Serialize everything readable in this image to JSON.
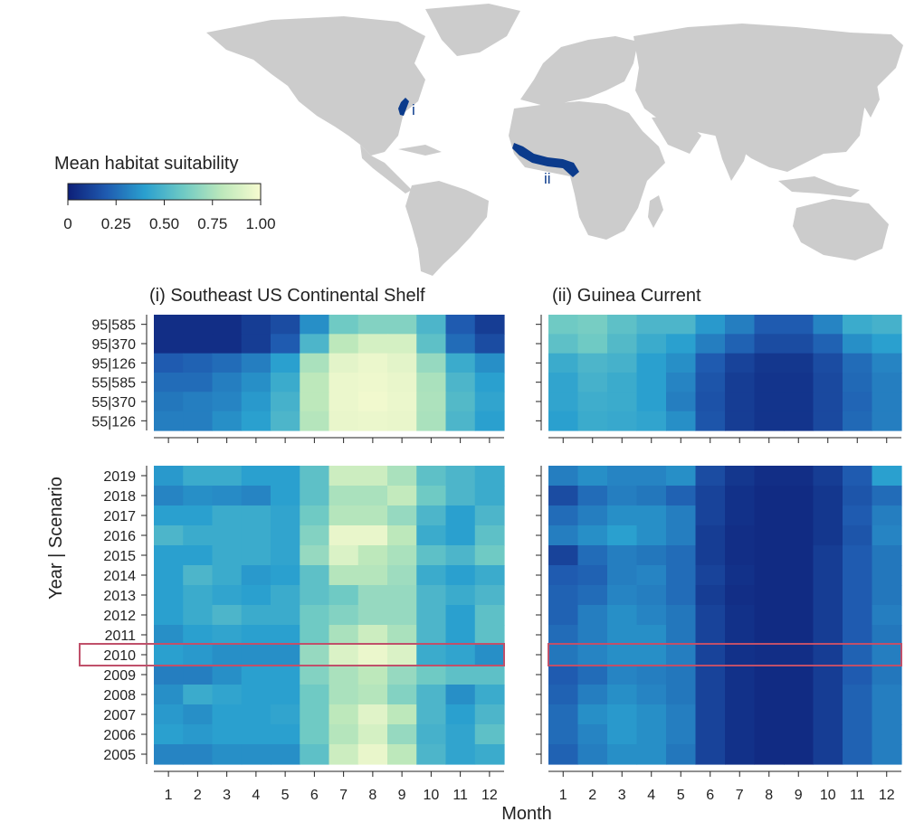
{
  "map": {
    "region_markers": [
      "i",
      "ii"
    ],
    "land_color": "#cccccc",
    "region_color": "#0b3b8c"
  },
  "colorbar": {
    "title": "Mean habitat suitability",
    "ticks": [
      "0",
      "0.25",
      "0.50",
      "0.75",
      "1.00"
    ],
    "stops": [
      "#0d1f78",
      "#1f5bb0",
      "#2aa0cf",
      "#6fcac4",
      "#bde8bb",
      "#f7fbd0"
    ]
  },
  "highlight_color": "#c0506a",
  "chart_data": [
    {
      "type": "heatmap",
      "title": "(i) Southeast US Continental Shelf",
      "x": [
        1,
        2,
        3,
        4,
        5,
        6,
        7,
        8,
        9,
        10,
        11,
        12
      ],
      "y": [
        "95|585",
        "95|370",
        "95|126",
        "55|585",
        "55|370",
        "55|126"
      ],
      "values": [
        [
          0.05,
          0.05,
          0.05,
          0.1,
          0.15,
          0.35,
          0.6,
          0.65,
          0.65,
          0.5,
          0.2,
          0.1
        ],
        [
          0.05,
          0.05,
          0.05,
          0.1,
          0.2,
          0.5,
          0.8,
          0.88,
          0.88,
          0.55,
          0.25,
          0.15
        ],
        [
          0.2,
          0.22,
          0.25,
          0.3,
          0.4,
          0.75,
          0.93,
          0.96,
          0.93,
          0.7,
          0.45,
          0.35
        ],
        [
          0.25,
          0.25,
          0.3,
          0.35,
          0.45,
          0.8,
          0.96,
          0.97,
          0.95,
          0.75,
          0.5,
          0.4
        ],
        [
          0.28,
          0.3,
          0.32,
          0.38,
          0.48,
          0.8,
          0.96,
          0.98,
          0.96,
          0.76,
          0.52,
          0.42
        ],
        [
          0.3,
          0.3,
          0.35,
          0.4,
          0.5,
          0.78,
          0.95,
          0.96,
          0.95,
          0.75,
          0.5,
          0.4
        ]
      ],
      "vmin": 0,
      "vmax": 1
    },
    {
      "type": "heatmap",
      "title": "(ii) Guinea Current",
      "x": [
        1,
        2,
        3,
        4,
        5,
        6,
        7,
        8,
        9,
        10,
        11,
        12
      ],
      "y": [
        "95|585",
        "95|370",
        "95|126",
        "55|585",
        "55|370",
        "55|126"
      ],
      "values": [
        [
          0.6,
          0.62,
          0.55,
          0.5,
          0.5,
          0.38,
          0.3,
          0.2,
          0.2,
          0.32,
          0.45,
          0.48
        ],
        [
          0.55,
          0.6,
          0.52,
          0.45,
          0.4,
          0.3,
          0.22,
          0.15,
          0.15,
          0.22,
          0.35,
          0.4
        ],
        [
          0.45,
          0.5,
          0.48,
          0.4,
          0.35,
          0.2,
          0.12,
          0.08,
          0.08,
          0.15,
          0.25,
          0.32
        ],
        [
          0.42,
          0.48,
          0.45,
          0.4,
          0.32,
          0.18,
          0.1,
          0.07,
          0.07,
          0.14,
          0.24,
          0.3
        ],
        [
          0.42,
          0.46,
          0.45,
          0.4,
          0.3,
          0.17,
          0.1,
          0.07,
          0.07,
          0.14,
          0.23,
          0.3
        ],
        [
          0.4,
          0.45,
          0.44,
          0.42,
          0.35,
          0.18,
          0.1,
          0.07,
          0.07,
          0.14,
          0.24,
          0.3
        ]
      ],
      "vmin": 0,
      "vmax": 1
    },
    {
      "type": "heatmap",
      "title": "",
      "ylabel": "Year | Scenario",
      "x": [
        1,
        2,
        3,
        4,
        5,
        6,
        7,
        8,
        9,
        10,
        11,
        12
      ],
      "y": [
        "2019",
        "2018",
        "2017",
        "2016",
        "2015",
        "2014",
        "2013",
        "2012",
        "2011",
        "2010",
        "2009",
        "2008",
        "2007",
        "2006",
        "2005"
      ],
      "highlight_row": "2010",
      "values": [
        [
          0.38,
          0.45,
          0.45,
          0.4,
          0.4,
          0.55,
          0.85,
          0.85,
          0.75,
          0.55,
          0.5,
          0.45
        ],
        [
          0.32,
          0.35,
          0.34,
          0.32,
          0.4,
          0.55,
          0.75,
          0.75,
          0.82,
          0.6,
          0.5,
          0.45
        ],
        [
          0.4,
          0.4,
          0.45,
          0.45,
          0.42,
          0.6,
          0.78,
          0.78,
          0.7,
          0.5,
          0.4,
          0.5
        ],
        [
          0.5,
          0.45,
          0.45,
          0.45,
          0.42,
          0.65,
          0.95,
          0.95,
          0.8,
          0.45,
          0.4,
          0.55
        ],
        [
          0.4,
          0.4,
          0.45,
          0.45,
          0.42,
          0.7,
          0.9,
          0.8,
          0.75,
          0.55,
          0.5,
          0.6
        ],
        [
          0.4,
          0.5,
          0.45,
          0.38,
          0.4,
          0.55,
          0.78,
          0.78,
          0.72,
          0.45,
          0.4,
          0.45
        ],
        [
          0.4,
          0.45,
          0.42,
          0.4,
          0.45,
          0.55,
          0.6,
          0.7,
          0.7,
          0.5,
          0.45,
          0.5
        ],
        [
          0.4,
          0.45,
          0.5,
          0.45,
          0.45,
          0.6,
          0.65,
          0.7,
          0.7,
          0.5,
          0.4,
          0.55
        ],
        [
          0.35,
          0.4,
          0.42,
          0.4,
          0.4,
          0.6,
          0.75,
          0.85,
          0.75,
          0.5,
          0.4,
          0.55
        ],
        [
          0.4,
          0.38,
          0.35,
          0.35,
          0.35,
          0.7,
          0.9,
          0.96,
          0.9,
          0.45,
          0.42,
          0.35
        ],
        [
          0.3,
          0.3,
          0.35,
          0.4,
          0.4,
          0.65,
          0.75,
          0.8,
          0.7,
          0.6,
          0.55,
          0.55
        ],
        [
          0.35,
          0.45,
          0.42,
          0.4,
          0.4,
          0.6,
          0.75,
          0.78,
          0.65,
          0.5,
          0.35,
          0.45
        ],
        [
          0.38,
          0.35,
          0.4,
          0.4,
          0.42,
          0.6,
          0.8,
          0.92,
          0.8,
          0.5,
          0.4,
          0.5
        ],
        [
          0.4,
          0.38,
          0.4,
          0.4,
          0.4,
          0.6,
          0.78,
          0.88,
          0.7,
          0.48,
          0.42,
          0.55
        ],
        [
          0.32,
          0.32,
          0.35,
          0.35,
          0.35,
          0.55,
          0.85,
          0.95,
          0.8,
          0.5,
          0.42,
          0.45
        ]
      ],
      "vmin": 0,
      "vmax": 1
    },
    {
      "type": "heatmap",
      "title": "",
      "xlabel": "Month",
      "x": [
        1,
        2,
        3,
        4,
        5,
        6,
        7,
        8,
        9,
        10,
        11,
        12
      ],
      "y": [
        "2019",
        "2018",
        "2017",
        "2016",
        "2015",
        "2014",
        "2013",
        "2012",
        "2011",
        "2010",
        "2009",
        "2008",
        "2007",
        "2006",
        "2005"
      ],
      "highlight_row": "2010",
      "values": [
        [
          0.3,
          0.35,
          0.32,
          0.32,
          0.35,
          0.15,
          0.08,
          0.05,
          0.05,
          0.1,
          0.2,
          0.4
        ],
        [
          0.15,
          0.25,
          0.3,
          0.28,
          0.22,
          0.12,
          0.06,
          0.04,
          0.04,
          0.08,
          0.18,
          0.25
        ],
        [
          0.25,
          0.3,
          0.35,
          0.35,
          0.3,
          0.12,
          0.06,
          0.04,
          0.04,
          0.08,
          0.2,
          0.3
        ],
        [
          0.3,
          0.35,
          0.4,
          0.35,
          0.3,
          0.1,
          0.05,
          0.04,
          0.04,
          0.08,
          0.18,
          0.32
        ],
        [
          0.12,
          0.25,
          0.3,
          0.28,
          0.25,
          0.1,
          0.05,
          0.04,
          0.04,
          0.1,
          0.2,
          0.28
        ],
        [
          0.2,
          0.22,
          0.3,
          0.32,
          0.25,
          0.12,
          0.06,
          0.04,
          0.04,
          0.1,
          0.2,
          0.28
        ],
        [
          0.22,
          0.25,
          0.32,
          0.3,
          0.25,
          0.1,
          0.05,
          0.04,
          0.04,
          0.1,
          0.2,
          0.28
        ],
        [
          0.22,
          0.3,
          0.35,
          0.32,
          0.28,
          0.12,
          0.06,
          0.04,
          0.04,
          0.1,
          0.2,
          0.3
        ],
        [
          0.25,
          0.3,
          0.35,
          0.35,
          0.28,
          0.12,
          0.06,
          0.04,
          0.04,
          0.1,
          0.2,
          0.28
        ],
        [
          0.28,
          0.32,
          0.35,
          0.35,
          0.3,
          0.12,
          0.06,
          0.05,
          0.05,
          0.1,
          0.22,
          0.3
        ],
        [
          0.2,
          0.25,
          0.32,
          0.3,
          0.28,
          0.12,
          0.06,
          0.04,
          0.04,
          0.1,
          0.2,
          0.28
        ],
        [
          0.22,
          0.3,
          0.35,
          0.32,
          0.28,
          0.12,
          0.06,
          0.04,
          0.04,
          0.1,
          0.22,
          0.3
        ],
        [
          0.25,
          0.35,
          0.38,
          0.35,
          0.3,
          0.12,
          0.06,
          0.04,
          0.04,
          0.1,
          0.22,
          0.3
        ],
        [
          0.25,
          0.32,
          0.38,
          0.35,
          0.3,
          0.12,
          0.06,
          0.04,
          0.04,
          0.1,
          0.22,
          0.3
        ],
        [
          0.22,
          0.3,
          0.35,
          0.35,
          0.28,
          0.12,
          0.06,
          0.04,
          0.04,
          0.1,
          0.22,
          0.3
        ]
      ],
      "vmin": 0,
      "vmax": 1
    }
  ]
}
